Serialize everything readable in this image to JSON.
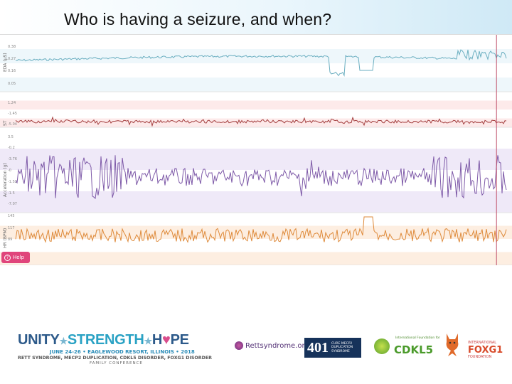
{
  "slide": {
    "title": "Who is having a seizure, and when?"
  },
  "dashboard": {
    "help_label": "Help",
    "help_icon": "question-circle-icon",
    "tracks": [
      {
        "name": "eda",
        "axis_label": "EDA (µS)",
        "color": "#6aaec0",
        "band": "#eef7fb",
        "ticks": [
          "0.38",
          "0.27",
          "0.16",
          "0.05"
        ],
        "ylim": [
          0.05,
          0.38
        ]
      },
      {
        "name": "temp",
        "axis_label": "ST",
        "color": "#a33d3d",
        "band": "#fdeaea",
        "ticks": [
          "1.24",
          "-1.45",
          "-5.04"
        ],
        "ylim": [
          -5.04,
          1.24
        ]
      },
      {
        "name": "acc",
        "axis_label": "Acceleration (g)",
        "color": "#7e5aa8",
        "band": "#efe9f8",
        "ticks": [
          "3.5",
          "-0.2",
          "-3.76",
          "-0",
          "-1.52",
          "-1.5",
          "-7.07"
        ],
        "ylim": [
          -7.07,
          3.5
        ]
      },
      {
        "name": "hr",
        "axis_label": "HR (BPM)",
        "color": "#de8a3a",
        "band": "#fdeee1",
        "ticks": [
          "145",
          "117",
          "89"
        ],
        "ylim": [
          89,
          145
        ]
      }
    ],
    "marker": {
      "color": "#c0506a",
      "position_fraction": 0.98
    }
  },
  "footer": {
    "unity": [
      "UNITY",
      "STRENGTH",
      "H",
      "PE"
    ],
    "dates": "JUNE 24-26 • EAGLEWOOD RESORT, ILLINOIS • 2018",
    "conditions": "RETT SYNDROME, MECP2 DUPLICATION, CDKL5 DISORDER, FOXG1 DISORDER",
    "conference": "FAMILY CONFERENCE",
    "logos": {
      "rett": "Rettsyndrome.org",
      "four01_big": "401",
      "four01_small": "CURE MECP2 DUPLICATION SYNDROME",
      "cdkl5_intl": "International Foundation for",
      "cdkl5_name": "CDKL5",
      "foxg1_intl": "INTERNATIONAL",
      "foxg1_name": "FOXG1",
      "foxg1_found": "FOUNDATION"
    }
  }
}
